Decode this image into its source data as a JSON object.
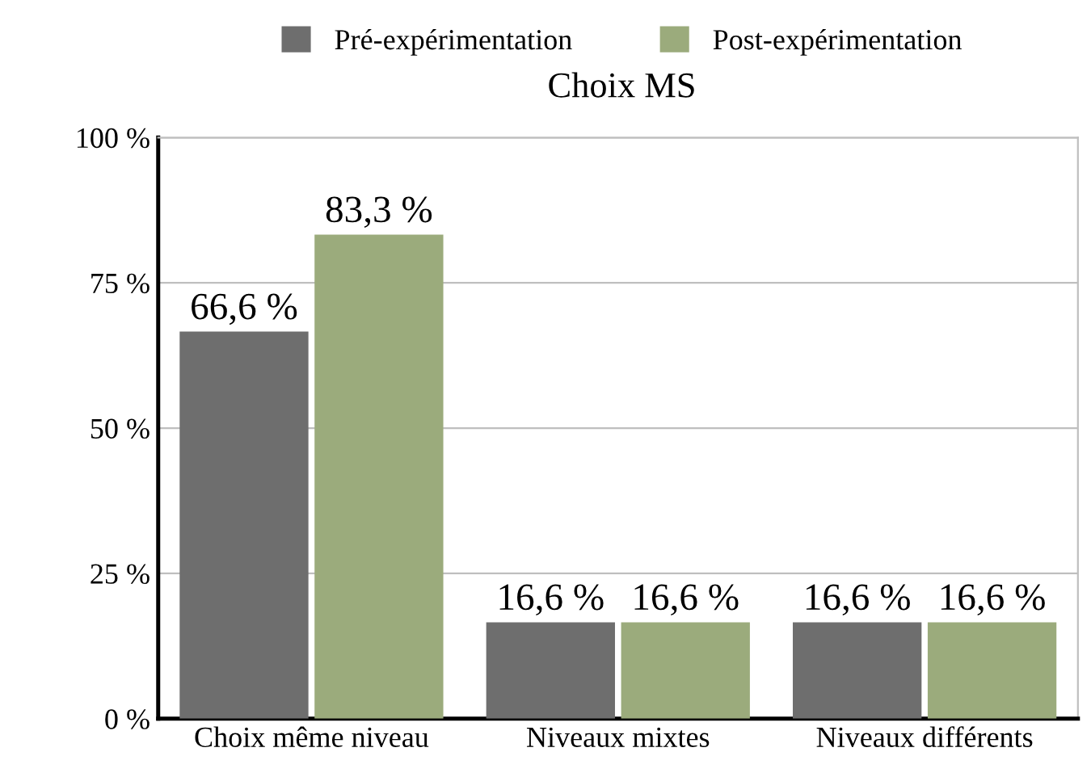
{
  "chart_data": {
    "type": "bar",
    "title": "Choix MS",
    "categories": [
      "Choix même niveau",
      "Niveaux mixtes",
      "Niveaux différents"
    ],
    "series": [
      {
        "name": "Pré-expérimentation",
        "color": "#6e6e6e",
        "values": [
          66.6,
          16.6,
          16.6
        ],
        "value_labels": [
          "66,6 %",
          "16,6 %",
          "16,6 %"
        ]
      },
      {
        "name": "Post-expérimentation",
        "color": "#9bab7c",
        "values": [
          83.3,
          16.6,
          16.6
        ],
        "value_labels": [
          "83,3 %",
          "16,6 %",
          "16,6 %"
        ]
      }
    ],
    "ylim": [
      0,
      100
    ],
    "yticks": [
      {
        "value": 0,
        "label": "0 %"
      },
      {
        "value": 25,
        "label": "25 %"
      },
      {
        "value": 50,
        "label": "50 %"
      },
      {
        "value": 75,
        "label": "75 %"
      },
      {
        "value": 100,
        "label": "100 %"
      }
    ],
    "grid": "y",
    "legend": "top"
  }
}
